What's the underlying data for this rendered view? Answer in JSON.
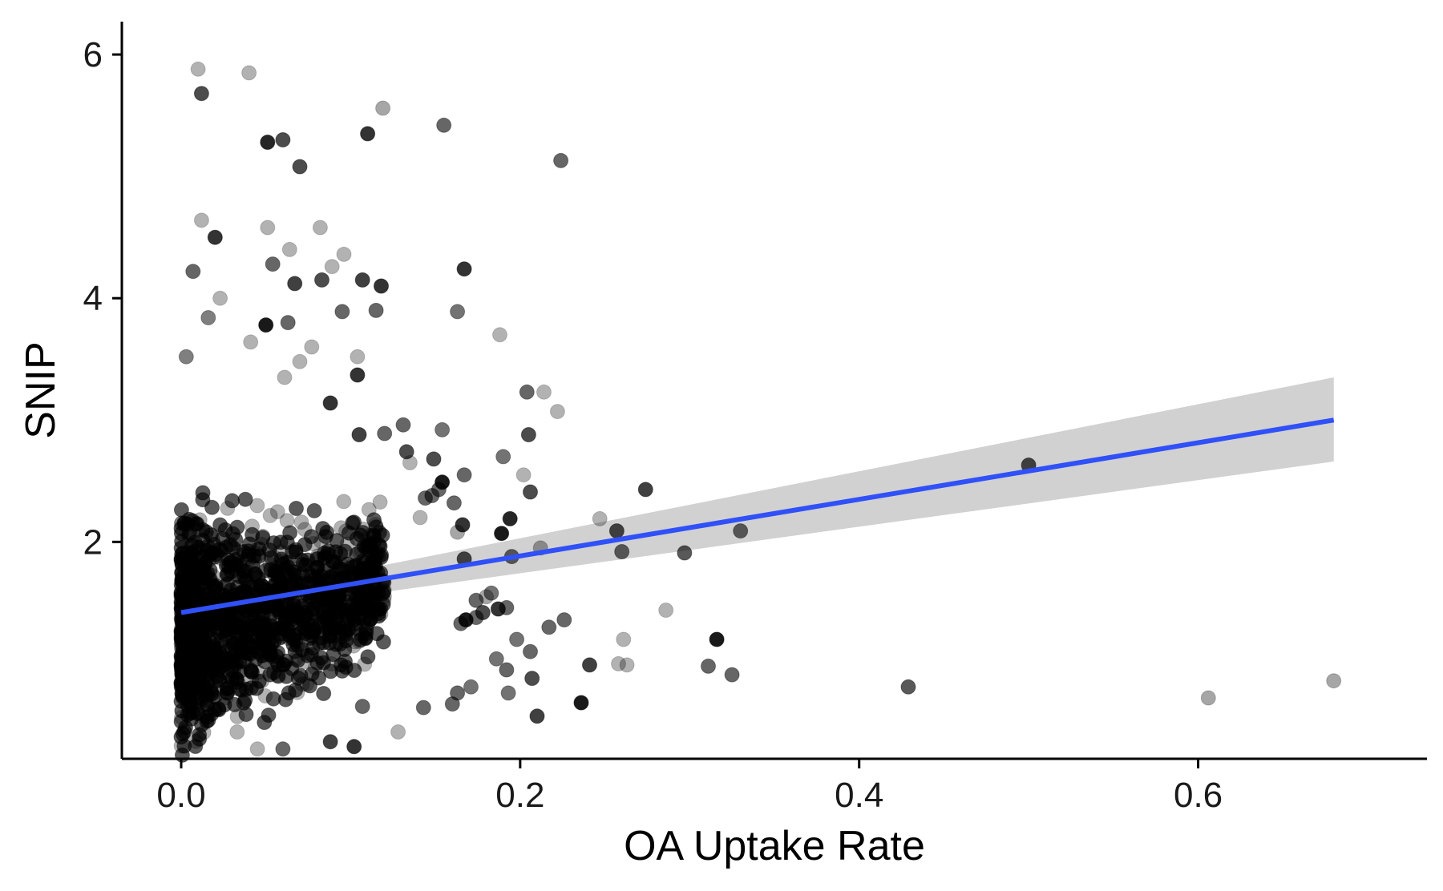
{
  "chart_data": {
    "type": "scatter",
    "xlabel": "OA Uptake Rate",
    "ylabel": "SNIP",
    "xlim": [
      -0.035,
      0.735
    ],
    "ylim": [
      0.22,
      6.27
    ],
    "xticks": [
      0.0,
      0.2,
      0.4,
      0.6
    ],
    "xtick_labels": [
      "0.0",
      "0.2",
      "0.4",
      "0.6"
    ],
    "yticks": [
      2,
      4,
      6
    ],
    "ytick_labels": [
      "2",
      "4",
      "6"
    ],
    "grid": false,
    "legend": "none",
    "colors": {
      "points": "#000000",
      "trend_line": "#3050f8",
      "confidence_band": "#cccccc"
    },
    "trend_line": {
      "type": "linear",
      "x": [
        0.0,
        0.68
      ],
      "y": [
        1.42,
        3.0
      ],
      "ci_lower": [
        1.36,
        2.66
      ],
      "ci_upper": [
        1.48,
        3.35
      ]
    },
    "cluster": {
      "x_range": [
        0.0,
        0.12
      ],
      "y_range": [
        0.25,
        3.0
      ],
      "count": 1300
    },
    "points": [
      [
        0.01,
        5.88,
        0.3
      ],
      [
        0.04,
        5.85,
        0.3
      ],
      [
        0.012,
        5.68,
        0.7
      ],
      [
        0.119,
        5.56,
        0.35
      ],
      [
        0.155,
        5.42,
        0.6
      ],
      [
        0.11,
        5.35,
        0.8
      ],
      [
        0.06,
        5.3,
        0.7
      ],
      [
        0.051,
        5.28,
        0.85
      ],
      [
        0.07,
        5.08,
        0.7
      ],
      [
        0.224,
        5.13,
        0.6
      ],
      [
        0.012,
        4.64,
        0.3
      ],
      [
        0.051,
        4.58,
        0.3
      ],
      [
        0.082,
        4.58,
        0.3
      ],
      [
        0.02,
        4.5,
        0.8
      ],
      [
        0.064,
        4.4,
        0.3
      ],
      [
        0.096,
        4.36,
        0.3
      ],
      [
        0.054,
        4.28,
        0.6
      ],
      [
        0.089,
        4.26,
        0.3
      ],
      [
        0.007,
        4.22,
        0.6
      ],
      [
        0.167,
        4.24,
        0.8
      ],
      [
        0.067,
        4.12,
        0.75
      ],
      [
        0.083,
        4.15,
        0.7
      ],
      [
        0.107,
        4.15,
        0.75
      ],
      [
        0.118,
        4.1,
        0.8
      ],
      [
        0.023,
        4.0,
        0.3
      ],
      [
        0.163,
        3.89,
        0.55
      ],
      [
        0.095,
        3.89,
        0.6
      ],
      [
        0.115,
        3.9,
        0.6
      ],
      [
        0.016,
        3.84,
        0.5
      ],
      [
        0.05,
        3.78,
        0.9
      ],
      [
        0.063,
        3.8,
        0.6
      ],
      [
        0.188,
        3.7,
        0.3
      ],
      [
        0.041,
        3.64,
        0.3
      ],
      [
        0.077,
        3.6,
        0.3
      ],
      [
        0.003,
        3.52,
        0.5
      ],
      [
        0.104,
        3.52,
        0.3
      ],
      [
        0.07,
        3.48,
        0.3
      ],
      [
        0.104,
        3.37,
        0.8
      ],
      [
        0.061,
        3.35,
        0.3
      ],
      [
        0.204,
        3.23,
        0.6
      ],
      [
        0.214,
        3.23,
        0.3
      ],
      [
        0.222,
        3.07,
        0.3
      ],
      [
        0.088,
        3.14,
        0.8
      ],
      [
        0.131,
        2.96,
        0.6
      ],
      [
        0.154,
        2.92,
        0.55
      ],
      [
        0.205,
        2.88,
        0.7
      ],
      [
        0.105,
        2.88,
        0.75
      ],
      [
        0.12,
        2.89,
        0.6
      ],
      [
        0.133,
        2.74,
        0.7
      ],
      [
        0.19,
        2.7,
        0.55
      ],
      [
        0.149,
        2.68,
        0.7
      ],
      [
        0.135,
        2.65,
        0.3
      ],
      [
        0.202,
        2.55,
        0.3
      ],
      [
        0.167,
        2.55,
        0.6
      ],
      [
        0.154,
        2.49,
        0.9
      ],
      [
        0.152,
        2.43,
        0.6
      ],
      [
        0.206,
        2.41,
        0.7
      ],
      [
        0.148,
        2.38,
        0.6
      ],
      [
        0.144,
        2.36,
        0.6
      ],
      [
        0.161,
        2.32,
        0.6
      ],
      [
        0.141,
        2.2,
        0.3
      ],
      [
        0.247,
        2.19,
        0.3
      ],
      [
        0.194,
        2.19,
        0.85
      ],
      [
        0.274,
        2.43,
        0.75
      ],
      [
        0.166,
        2.14,
        0.8
      ],
      [
        0.163,
        2.08,
        0.35
      ],
      [
        0.189,
        2.07,
        0.9
      ],
      [
        0.257,
        2.09,
        0.7
      ],
      [
        0.33,
        2.09,
        0.6
      ],
      [
        0.5,
        2.63,
        0.7
      ],
      [
        0.212,
        1.95,
        0.35
      ],
      [
        0.195,
        1.88,
        0.6
      ],
      [
        0.26,
        1.92,
        0.6
      ],
      [
        0.297,
        1.91,
        0.65
      ],
      [
        0.167,
        1.86,
        0.7
      ],
      [
        0.183,
        1.58,
        0.55
      ],
      [
        0.18,
        1.55,
        0.35
      ],
      [
        0.174,
        1.52,
        0.6
      ],
      [
        0.187,
        1.45,
        0.8
      ],
      [
        0.192,
        1.46,
        0.6
      ],
      [
        0.178,
        1.42,
        0.7
      ],
      [
        0.174,
        1.38,
        0.6
      ],
      [
        0.168,
        1.36,
        0.9
      ],
      [
        0.165,
        1.33,
        0.6
      ],
      [
        0.226,
        1.36,
        0.6
      ],
      [
        0.217,
        1.3,
        0.6
      ],
      [
        0.286,
        1.44,
        0.3
      ],
      [
        0.261,
        1.2,
        0.3
      ],
      [
        0.316,
        1.2,
        0.9
      ],
      [
        0.198,
        1.2,
        0.55
      ],
      [
        0.206,
        1.1,
        0.6
      ],
      [
        0.186,
        1.04,
        0.55
      ],
      [
        0.192,
        0.95,
        0.6
      ],
      [
        0.241,
        0.99,
        0.75
      ],
      [
        0.258,
        1.0,
        0.3
      ],
      [
        0.263,
        0.99,
        0.3
      ],
      [
        0.311,
        0.98,
        0.6
      ],
      [
        0.325,
        0.91,
        0.6
      ],
      [
        0.207,
        0.88,
        0.7
      ],
      [
        0.193,
        0.76,
        0.55
      ],
      [
        0.21,
        0.57,
        0.75
      ],
      [
        0.236,
        0.68,
        0.9
      ],
      [
        0.429,
        0.81,
        0.65
      ],
      [
        0.606,
        0.72,
        0.35
      ],
      [
        0.68,
        0.86,
        0.35
      ],
      [
        0.171,
        0.81,
        0.55
      ],
      [
        0.163,
        0.76,
        0.6
      ],
      [
        0.143,
        0.64,
        0.6
      ],
      [
        0.16,
        0.67,
        0.6
      ],
      [
        0.128,
        0.44,
        0.3
      ],
      [
        0.088,
        0.36,
        0.75
      ],
      [
        0.102,
        0.32,
        0.8
      ],
      [
        0.045,
        0.3,
        0.3
      ],
      [
        0.06,
        0.3,
        0.6
      ],
      [
        0.033,
        0.44,
        0.3
      ],
      [
        0.107,
        0.65,
        0.6
      ]
    ]
  }
}
